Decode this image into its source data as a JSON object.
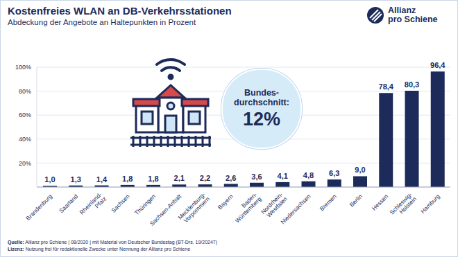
{
  "chart_data": {
    "type": "bar",
    "title": "Kostenfreies WLAN an DB-Verkehrsstationen",
    "subtitle": "Abdeckung der Angebote an Haltepunkten in Prozent",
    "categories": [
      "Brandenburg",
      "Saarland",
      "Rheinland-\nPfalz",
      "Sachsen",
      "Thüringen",
      "Sachsen-Anhalt",
      "Mecklenburg-\nVorpommern",
      "Bayern",
      "Baden-\nWürttemberg",
      "Nordrhein-\nWestfalen",
      "Niedersachsen",
      "Bremen",
      "Berlin",
      "Hessen",
      "Schleswig-\nHolstein",
      "Hamburg"
    ],
    "values": [
      1.0,
      1.3,
      1.4,
      1.8,
      1.8,
      2.1,
      2.2,
      2.6,
      3.6,
      4.1,
      4.8,
      6.3,
      9.0,
      78.4,
      80.3,
      96.4
    ],
    "value_labels": [
      "1,0",
      "1,3",
      "1,4",
      "1,8",
      "1,8",
      "2,1",
      "2,2",
      "2,6",
      "3,6",
      "4,1",
      "4,8",
      "6,3",
      "9,0",
      "78,4",
      "80,3",
      "96,4"
    ],
    "color": "#1c2b59",
    "ylim": [
      0,
      100
    ],
    "yticks": [
      {
        "value": 20,
        "label": "20%"
      },
      {
        "value": 40,
        "label": "40%"
      },
      {
        "value": 60,
        "label": "60%"
      },
      {
        "value": 80,
        "label": "80%"
      },
      {
        "value": 100,
        "label": "100%"
      }
    ],
    "grid": true,
    "data_labels": true,
    "annotations": [
      "Bundes-\ndurchschnitt:",
      "12%"
    ],
    "logo": "Allianz\npro Schiene",
    "source": "Quelle: Allianz pro Schiene | 08/2020 | mit Material von Deutscher Bundestag (BT-Drs. 19/20247)",
    "license": "Lizenz: Nutzung frei für redaktionelle Zwecke unter Nennung der Allianz pro Schiene"
  }
}
